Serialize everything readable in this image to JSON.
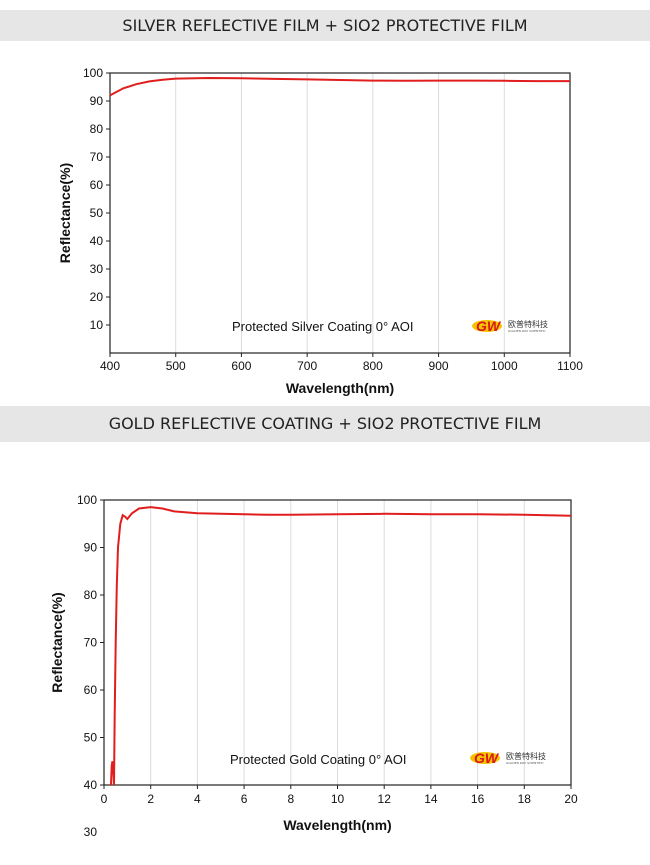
{
  "banners": {
    "silver": "SILVER REFLECTIVE FILM + SIO2 PROTECTIVE FILM",
    "gold": "GOLD REFLECTIVE COATING + SIO2 PROTECTIVE FILM"
  },
  "logo": {
    "mark": "GW",
    "cn_text": "欧普特科技",
    "en_text": "GOLDEN WAY SCIENTIFIC"
  },
  "colors": {
    "curve": "#e01e1e",
    "banner_bg": "#e6e6e6",
    "grid": "#dcdcdc"
  },
  "chart_data": [
    {
      "type": "line",
      "xlabel": "Wavelength(nm)",
      "ylabel": "Reflectance(%)",
      "annotation": "Protected Silver Coating  0°  AOI",
      "xlim": [
        400,
        1100
      ],
      "ylim": [
        0,
        100
      ],
      "x_ticks": [
        400,
        500,
        600,
        700,
        800,
        900,
        1000,
        1100
      ],
      "y_ticks": [
        10,
        20,
        30,
        40,
        50,
        60,
        70,
        80,
        90,
        100
      ],
      "grid": true,
      "series": [
        {
          "x": [
            400,
            420,
            440,
            460,
            480,
            500,
            550,
            600,
            650,
            700,
            750,
            800,
            850,
            900,
            950,
            1000,
            1050,
            1100
          ],
          "y": [
            92.0,
            94.5,
            96.0,
            97.0,
            97.6,
            98.0,
            98.2,
            98.1,
            97.9,
            97.7,
            97.5,
            97.3,
            97.2,
            97.3,
            97.3,
            97.2,
            97.1,
            97.1
          ]
        }
      ]
    },
    {
      "type": "line",
      "xlabel": "Wavelength(nm)",
      "ylabel": "Reflectance(%)",
      "annotation": "Protected Gold Coating  0°  AOI",
      "xlim": [
        0,
        20
      ],
      "ylim": [
        40,
        100
      ],
      "x_ticks": [
        0,
        2,
        4,
        6,
        8,
        10,
        12,
        14,
        16,
        18,
        20
      ],
      "y_ticks": [
        40,
        50,
        60,
        70,
        80,
        90,
        100
      ],
      "extra_tick_label": "30",
      "grid": true,
      "series": [
        {
          "x": [
            0.3,
            0.33,
            0.36,
            0.4,
            0.43,
            0.46,
            0.5,
            0.55,
            0.6,
            0.7,
            0.8,
            0.9,
            1.0,
            1.2,
            1.5,
            2.0,
            2.5,
            3.0,
            4.0,
            5.0,
            6.0,
            7.0,
            8.0,
            10.0,
            12.0,
            14.0,
            16.0,
            18.0,
            20.0
          ],
          "y": [
            40,
            44,
            45,
            43,
            40,
            55,
            70,
            82,
            90,
            95,
            96.8,
            96.5,
            96.0,
            97.2,
            98.2,
            98.5,
            98.2,
            97.6,
            97.2,
            97.1,
            97.0,
            96.9,
            96.9,
            97.0,
            97.1,
            97.0,
            97.0,
            96.9,
            96.7
          ]
        }
      ]
    }
  ]
}
